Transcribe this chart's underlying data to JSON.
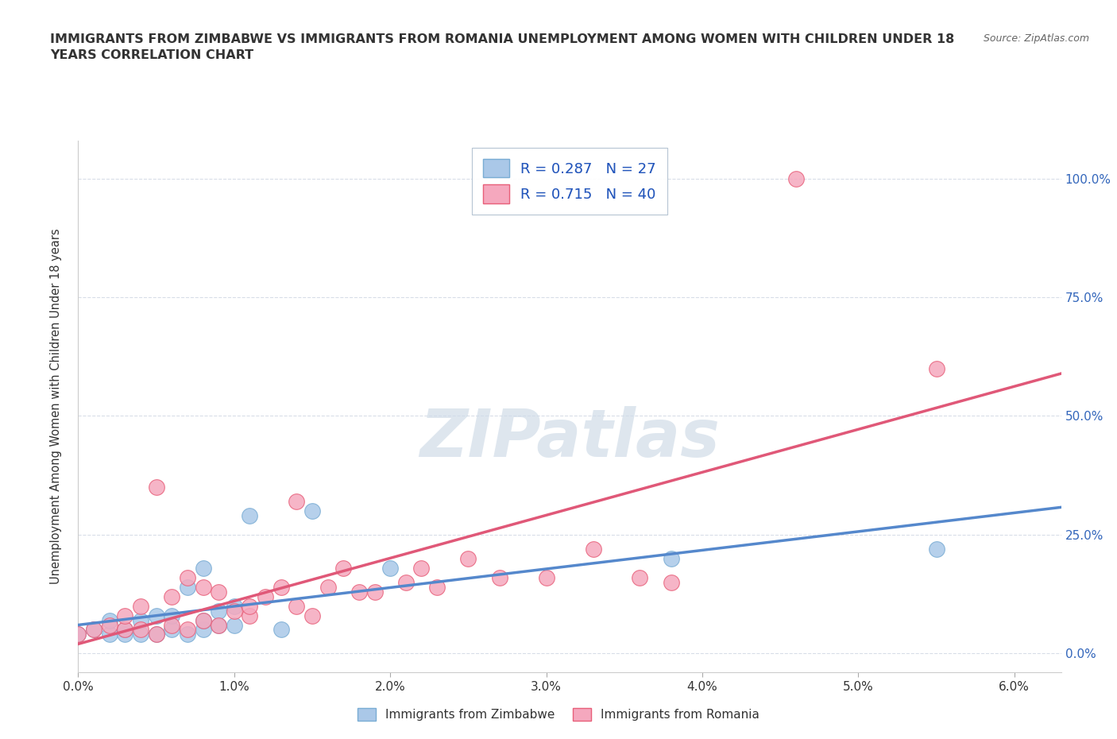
{
  "title": "IMMIGRANTS FROM ZIMBABWE VS IMMIGRANTS FROM ROMANIA UNEMPLOYMENT AMONG WOMEN WITH CHILDREN UNDER 18\nYEARS CORRELATION CHART",
  "source": "Source: ZipAtlas.com",
  "xlabel_ticks": [
    "0.0%",
    "1.0%",
    "2.0%",
    "3.0%",
    "4.0%",
    "5.0%",
    "6.0%"
  ],
  "ylabel_ticks": [
    "0.0%",
    "25.0%",
    "50.0%",
    "75.0%",
    "100.0%"
  ],
  "xlim": [
    0.0,
    0.063
  ],
  "ylim": [
    -0.04,
    1.08
  ],
  "zimbabwe_R": 0.287,
  "zimbabwe_N": 27,
  "romania_R": 0.715,
  "romania_N": 40,
  "zimbabwe_color": "#aac8e8",
  "romania_color": "#f5a8be",
  "zimbabwe_edge_color": "#7aadd4",
  "romania_edge_color": "#e8607a",
  "zimbabwe_line_color": "#5588cc",
  "romania_line_color": "#e05878",
  "legend_border_color": "#b0c0d0",
  "watermark_text": "ZIPatlas",
  "background_color": "#ffffff",
  "grid_color": "#d8dde8",
  "zimbabwe_x": [
    0.0,
    0.001,
    0.002,
    0.002,
    0.003,
    0.003,
    0.004,
    0.004,
    0.005,
    0.005,
    0.006,
    0.006,
    0.007,
    0.007,
    0.008,
    0.008,
    0.008,
    0.009,
    0.009,
    0.01,
    0.01,
    0.011,
    0.013,
    0.015,
    0.02,
    0.038,
    0.055
  ],
  "zimbabwe_y": [
    0.04,
    0.05,
    0.04,
    0.07,
    0.04,
    0.05,
    0.04,
    0.07,
    0.04,
    0.08,
    0.05,
    0.08,
    0.04,
    0.14,
    0.05,
    0.18,
    0.07,
    0.06,
    0.09,
    0.06,
    0.1,
    0.29,
    0.05,
    0.3,
    0.18,
    0.2,
    0.22
  ],
  "romania_x": [
    0.0,
    0.001,
    0.002,
    0.003,
    0.003,
    0.004,
    0.004,
    0.005,
    0.005,
    0.006,
    0.006,
    0.007,
    0.007,
    0.008,
    0.008,
    0.009,
    0.009,
    0.01,
    0.011,
    0.011,
    0.012,
    0.013,
    0.014,
    0.014,
    0.015,
    0.016,
    0.017,
    0.018,
    0.019,
    0.021,
    0.022,
    0.023,
    0.025,
    0.027,
    0.03,
    0.033,
    0.036,
    0.038,
    0.046,
    0.055
  ],
  "romania_y": [
    0.04,
    0.05,
    0.06,
    0.05,
    0.08,
    0.05,
    0.1,
    0.04,
    0.35,
    0.06,
    0.12,
    0.05,
    0.16,
    0.07,
    0.14,
    0.06,
    0.13,
    0.09,
    0.08,
    0.1,
    0.12,
    0.14,
    0.32,
    0.1,
    0.08,
    0.14,
    0.18,
    0.13,
    0.13,
    0.15,
    0.18,
    0.14,
    0.2,
    0.16,
    0.16,
    0.22,
    0.16,
    0.15,
    1.0,
    0.6
  ]
}
